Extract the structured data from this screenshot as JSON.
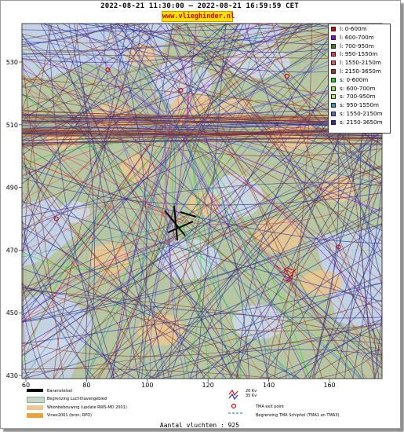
{
  "header": {
    "title": "2022-08-21 11:30:00 – 2022-08-21 16:59:59 CET",
    "site": "www.vlieghinder.nl"
  },
  "map": {
    "x_ticks": [
      "60",
      "80",
      "100",
      "120",
      "140",
      "160"
    ],
    "y_ticks": [
      "530",
      "510",
      "490",
      "470",
      "450",
      "430"
    ],
    "colors": {
      "land": "#b7c7a4",
      "water": "#c4d3e3",
      "urban": "#e9c894",
      "built": "#cfd8ea",
      "grid": "#999999"
    }
  },
  "legend": {
    "items": [
      {
        "label": "l: 0-600m",
        "color": "#e00000"
      },
      {
        "label": "l: 600-700m",
        "color": "#a000d0"
      },
      {
        "label": "l: 700-950m",
        "color": "#408020"
      },
      {
        "label": "l: 950-1550m",
        "color": "#e04060"
      },
      {
        "label": "l: 1550-2150m",
        "color": "#d06060"
      },
      {
        "label": "l: 2150-3650m",
        "color": "#8b3a24"
      },
      {
        "label": "s: 0-600m",
        "color": "#20d020"
      },
      {
        "label": "s: 600-700m",
        "color": "#90e040"
      },
      {
        "label": "s: 700-950m",
        "color": "#b0f060"
      },
      {
        "label": "s: 950-1550m",
        "color": "#30a0a0"
      },
      {
        "label": "s: 1550-2150m",
        "color": "#6060d0"
      },
      {
        "label": "s: 2150-3650m",
        "color": "#303090"
      }
    ]
  },
  "bottom_legend": {
    "banenstelsel": "Banenstelsel",
    "luchthaven": "Begrenzing Luchthavengebied",
    "woon": "Woonbebouwing (update RWS-MD 2001)",
    "vinex": "Vinex2001 (bron: RPD)",
    "kv20": "20 Kv",
    "kv35": "35 Kv",
    "tma_exit": "TMA exit point",
    "tma_bound": "Begrenzing TMA Schiphol  (TMA1 en TMA3)"
  },
  "footer": {
    "total": "Aantal vluchten : 925"
  }
}
